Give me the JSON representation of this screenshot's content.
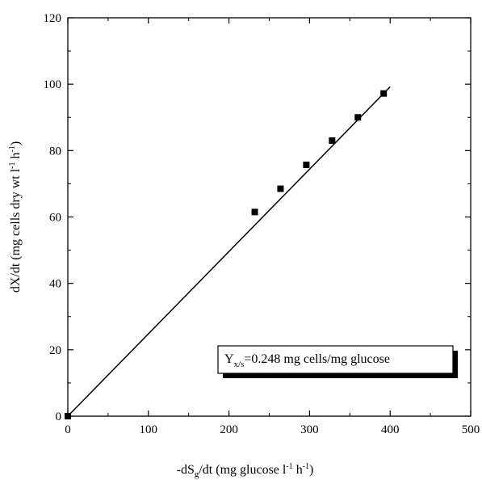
{
  "chart_data": {
    "type": "scatter",
    "xlabel": "-dS_g/dt (mg glucose l^-1 h^-1)",
    "xlabel_parts": {
      "pre": "-dS",
      "sub": "g",
      "mid": "/dt (mg glucose l",
      "sup1": "-1",
      "mid2": " h",
      "sup2": "-1",
      "post": ")"
    },
    "ylabel": "dX/dt (mg cells dry wt l^-1 h^-1)",
    "ylabel_parts": {
      "pre": "dX/dt (mg cells dry wt  l",
      "sup1": "-1",
      "mid": " h",
      "sup2": "-1",
      "post": ")"
    },
    "xlim": [
      0,
      500
    ],
    "ylim": [
      0,
      120
    ],
    "xticks": [
      0,
      100,
      200,
      300,
      400,
      500
    ],
    "yticks": [
      0,
      20,
      40,
      60,
      80,
      100,
      120
    ],
    "xtick_labels": [
      "0",
      "100",
      "200",
      "300",
      "400",
      "500"
    ],
    "ytick_labels": [
      "0",
      "20",
      "40",
      "60",
      "80",
      "100",
      "120"
    ],
    "grid": false,
    "legend": "none",
    "marker": "square",
    "color": "#000000",
    "series": [
      {
        "values": [
          {
            "x": 0,
            "y": 0
          },
          {
            "x": 232,
            "y": 61.5
          },
          {
            "x": 264,
            "y": 68.5
          },
          {
            "x": 296,
            "y": 75.7
          },
          {
            "x": 328,
            "y": 83
          },
          {
            "x": 360,
            "y": 90
          },
          {
            "x": 392,
            "y": 97.2
          }
        ]
      }
    ],
    "fit_line": {
      "slope": 0.248,
      "intercept": 0,
      "x_start": 0,
      "x_end": 400
    },
    "annotation": {
      "text_parts": {
        "pre": "Y",
        "sub": "x/s",
        "post": "=0.248 mg cells/mg glucose"
      },
      "position": "lower-right"
    }
  }
}
